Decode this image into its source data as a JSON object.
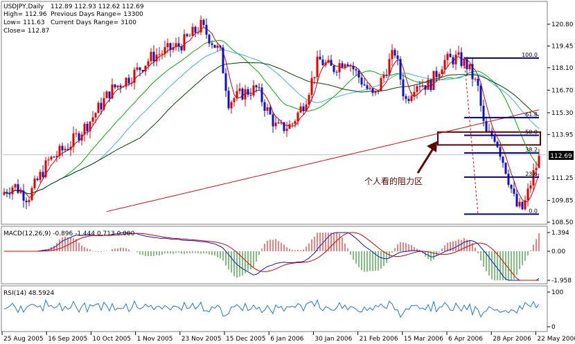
{
  "header": {
    "symbol": "USDJPY,Daily",
    "ohlc": "112.89 112.93 112.62 112.69",
    "high": "High= 112.96",
    "low": "Low= 111.63",
    "close": "Close= 112.87",
    "prev_range": "Previous Days Range= 13300",
    "curr_range": "Current Days Range= 3100"
  },
  "annotation": {
    "resistance_label": "个人看的阻力区"
  },
  "colors": {
    "bull": "#e00000",
    "bear": "#1010c0",
    "ma_fast": "#d00000",
    "ma_green": "#00b000",
    "ma_cyan": "#40b0e0",
    "ma_dark": "#004000",
    "ma_long": "#d01010",
    "fib": "#000080",
    "zone": "#600000",
    "macd_line": "#1010c0",
    "macd_signal": "#d00000",
    "rsi": "#1e78d2"
  },
  "chart_data": [
    {
      "type": "candlestick",
      "title": "USDJPY,Daily",
      "y_ticks": [
        "120.80",
        "119.45",
        "118.10",
        "116.70",
        "115.30",
        "113.95",
        "112.69",
        "111.25",
        "109.85",
        "108.50"
      ],
      "ylim": [
        108.5,
        120.8
      ],
      "last_price": "112.69",
      "x_ticks": [
        "25 Aug 2005",
        "16 Sep 2005",
        "10 Oct 2005",
        "1 Nov 2005",
        "23 Nov 2005",
        "15 Dec 2005",
        "6 Jan 2006",
        "30 Jan 2006",
        "21 Feb 2006",
        "15 Mar 2006",
        "6 Apr 2006",
        "28 Apr 2006",
        "22 May 2006"
      ],
      "fibonacci": {
        "levels": [
          "100.0",
          "61.8",
          "50.0",
          "38.2",
          "23.6",
          "0.0"
        ],
        "values": [
          118.7,
          115.0,
          113.9,
          112.8,
          111.3,
          109.0
        ]
      },
      "resistance_zone": [
        113.3,
        114.1
      ]
    },
    {
      "type": "line",
      "title": "MACD(12,26,9) -0.896 -1.444 0.713 0.000",
      "y_ticks": [
        "1.394",
        "0.00",
        "-1.958"
      ]
    },
    {
      "type": "line",
      "title": "RSI(14) 48.5924",
      "y_ticks": [
        "100",
        "0"
      ]
    }
  ]
}
